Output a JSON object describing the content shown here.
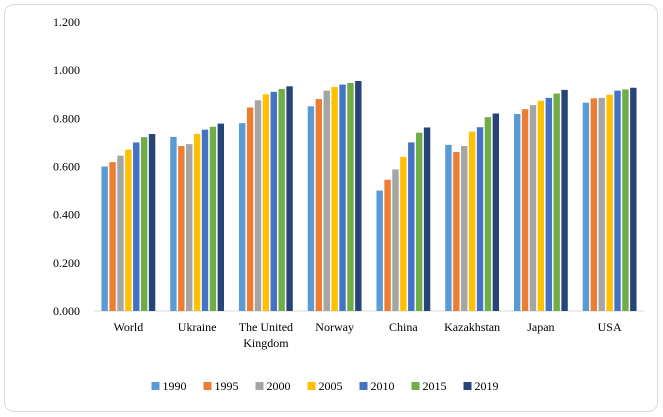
{
  "chart_data": {
    "type": "bar",
    "title": "",
    "xlabel": "",
    "ylabel": "",
    "ylim": [
      0,
      1.2
    ],
    "yticks": [
      "0.000",
      "0.200",
      "0.400",
      "0.600",
      "0.800",
      "1.000",
      "1.200"
    ],
    "grid": false,
    "legend_position": "bottom",
    "categories": [
      [
        "World"
      ],
      [
        "Ukraine"
      ],
      [
        "The United",
        "Kingdom"
      ],
      [
        "Norway"
      ],
      [
        "China"
      ],
      [
        "Kazakhstan"
      ],
      [
        "Japan"
      ],
      [
        "USA"
      ]
    ],
    "series": [
      {
        "name": "1990",
        "color": "#5b9bd5",
        "values": [
          0.6,
          0.723,
          0.78,
          0.85,
          0.5,
          0.69,
          0.818,
          0.865
        ]
      },
      {
        "name": "1995",
        "color": "#ed7d31",
        "values": [
          0.618,
          0.685,
          0.845,
          0.88,
          0.545,
          0.66,
          0.838,
          0.883
        ]
      },
      {
        "name": "2000",
        "color": "#a5a5a5",
        "values": [
          0.645,
          0.693,
          0.875,
          0.915,
          0.588,
          0.685,
          0.855,
          0.885
        ]
      },
      {
        "name": "2005",
        "color": "#ffc000",
        "values": [
          0.67,
          0.735,
          0.9,
          0.93,
          0.64,
          0.745,
          0.873,
          0.898
        ]
      },
      {
        "name": "2010",
        "color": "#4472c4",
        "values": [
          0.7,
          0.753,
          0.91,
          0.94,
          0.7,
          0.763,
          0.885,
          0.915
        ]
      },
      {
        "name": "2015",
        "color": "#70ad47",
        "values": [
          0.722,
          0.765,
          0.922,
          0.947,
          0.74,
          0.805,
          0.903,
          0.92
        ]
      },
      {
        "name": "2019",
        "color": "#264478",
        "values": [
          0.735,
          0.778,
          0.933,
          0.955,
          0.762,
          0.82,
          0.918,
          0.927
        ]
      }
    ]
  }
}
